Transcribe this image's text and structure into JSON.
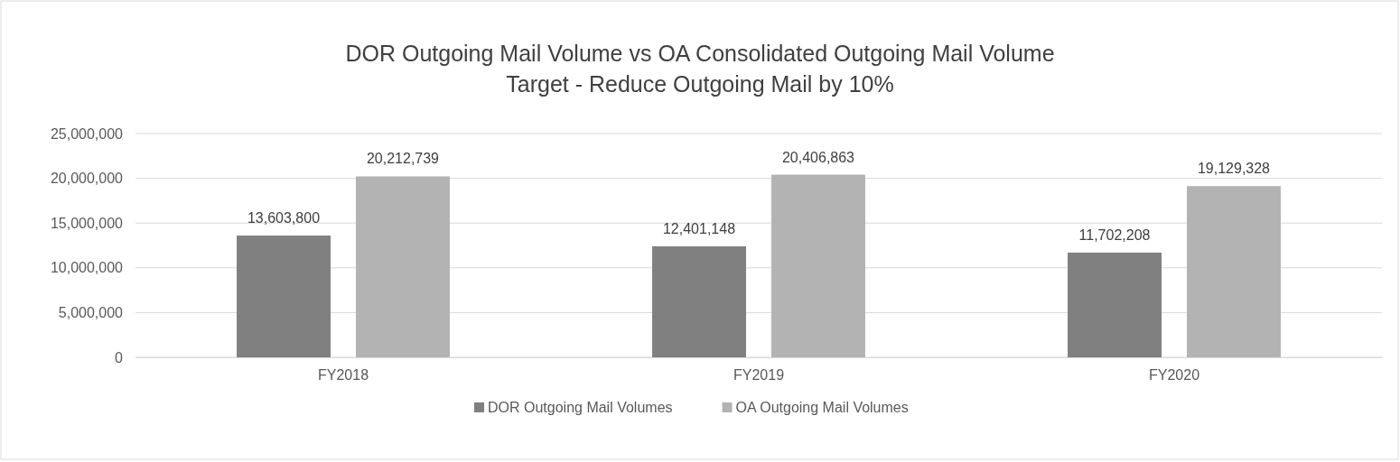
{
  "chart_data": {
    "type": "bar",
    "title": "DOR Outgoing Mail Volume vs OA Consolidated Outgoing Mail Volume",
    "subtitle": "Target - Reduce Outgoing Mail by 10%",
    "categories": [
      "FY2018",
      "FY2019",
      "FY2020"
    ],
    "series": [
      {
        "name": "DOR Outgoing Mail Volumes",
        "color": "#808080",
        "values": [
          13603800,
          12401148,
          11702208
        ],
        "value_labels": [
          "13,603,800",
          "12,401,148",
          "11,702,208"
        ]
      },
      {
        "name": "OA Outgoing Mail Volumes",
        "color": "#b3b3b3",
        "values": [
          20212739,
          20406863,
          19129328
        ],
        "value_labels": [
          "20,212,739",
          "20,406,863",
          "19,129,328"
        ]
      }
    ],
    "ylim": [
      0,
      25000000
    ],
    "yticks": [
      {
        "value": 0,
        "label": "0"
      },
      {
        "value": 5000000,
        "label": "5,000,000"
      },
      {
        "value": 10000000,
        "label": "10,000,000"
      },
      {
        "value": 15000000,
        "label": "15,000,000"
      },
      {
        "value": 20000000,
        "label": "20,000,000"
      },
      {
        "value": 25000000,
        "label": "25,000,000"
      }
    ],
    "grid": "y",
    "legend": "bottom"
  }
}
